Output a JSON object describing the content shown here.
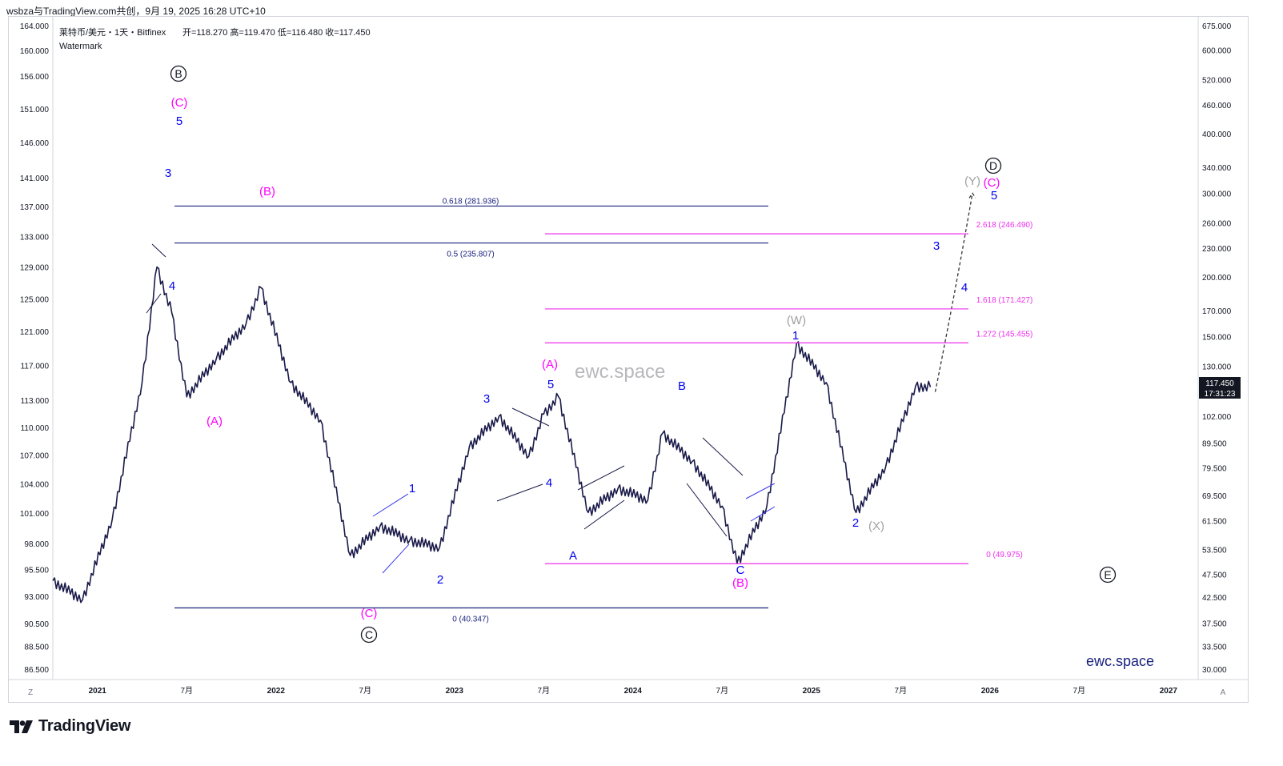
{
  "header": {
    "top_line": "wsbza与TradingView.com共创，9月 19, 2025 16:28 UTC+10",
    "symbol": "莱特币/美元・1天・Bitfinex",
    "ohlc": "开=118.270  高=119.470  低=116.480  收=117.450",
    "watermark_label": "Watermark"
  },
  "watermarks": {
    "center": "ewc.space",
    "corner": "ewc.space"
  },
  "footer": {
    "brand": "TradingView"
  },
  "axis": {
    "left_ticks": [
      "164.000",
      "160.000",
      "156.000",
      "151.000",
      "146.000",
      "141.000",
      "137.000",
      "133.000",
      "129.000",
      "125.000",
      "121.000",
      "117.000",
      "113.000",
      "110.000",
      "107.000",
      "104.000",
      "101.000",
      "98.000",
      "95.500",
      "93.000",
      "90.500",
      "88.500",
      "86.500"
    ],
    "right_ticks": [
      "675.000",
      "600.000",
      "520.000",
      "460.000",
      "400.000",
      "340.000",
      "300.000",
      "260.000",
      "230.000",
      "200.000",
      "170.000",
      "150.000",
      "130.000",
      "102.000",
      "89.500",
      "79.500",
      "69.500",
      "61.500",
      "53.500",
      "47.500",
      "42.500",
      "37.500",
      "33.500",
      "30.000"
    ],
    "x_ticks": [
      "2021",
      "7月",
      "2022",
      "7月",
      "2023",
      "7月",
      "2024",
      "7月",
      "2025",
      "7月",
      "2026",
      "7月",
      "2027"
    ],
    "left_corner": "Z",
    "right_corner": "A",
    "price_tag": "117.450",
    "countdown_tag": "17:31:23"
  },
  "colors": {
    "candles": "#1a1a4a",
    "blue_label": "#0000ee",
    "magenta": "#ff00ff",
    "grey_label": "#a0a0a0",
    "fib_navy": "#1a237e",
    "fib_magenta": "#ee30ee",
    "price_tag_bg": "#131722"
  },
  "chart_data": {
    "type": "line",
    "x": [
      "2020-10",
      "2020-12",
      "2021-02",
      "2021-04",
      "2021-05",
      "2021-06",
      "2021-07",
      "2021-09",
      "2021-11",
      "2021-12",
      "2022-02",
      "2022-04",
      "2022-06",
      "2022-08",
      "2022-10",
      "2022-12",
      "2023-02",
      "2023-04",
      "2023-06",
      "2023-07",
      "2023-08",
      "2023-10",
      "2023-12",
      "2024-02",
      "2024-03",
      "2024-05",
      "2024-07",
      "2024-08",
      "2024-10",
      "2024-12",
      "2025-02",
      "2025-04",
      "2025-06",
      "2025-08",
      "2025-09"
    ],
    "series": [
      {
        "values": [
          46,
          42,
          62,
          120,
          210,
          168,
          112,
          135,
          160,
          190,
          120,
          100,
          52,
          60,
          56,
          54,
          88,
          102,
          84,
          103,
          112,
          64,
          72,
          68,
          94,
          82,
          66,
          50,
          66,
          145,
          120,
          64,
          80,
          118,
          117.45
        ]
      }
    ],
    "scale": "log",
    "y_range_right": [
      30,
      675
    ],
    "y_range_left": [
      86.5,
      164
    ],
    "x_range": [
      "2020-10",
      "2027-03"
    ],
    "grid": false,
    "fib_levels": [
      {
        "label": "0.618 (281.936)",
        "value": 281.936
      },
      {
        "label": "0.5 (235.807)",
        "value": 235.807
      },
      {
        "label": "0 (40.347)",
        "value": 40.347
      },
      {
        "label": "2.618 (246.490)",
        "value": 246.49
      },
      {
        "label": "1.618 (171.427)",
        "value": 171.427
      },
      {
        "label": "1.272 (145.455)",
        "value": 145.455
      },
      {
        "label": "0 (49.975)",
        "value": 49.975
      }
    ],
    "wave_labels": [
      "B",
      "(C)",
      "5",
      "3",
      "4",
      "(B)",
      "(A)",
      "(C)",
      "C",
      "1",
      "2",
      "3",
      "4",
      "5",
      "(A)",
      "A",
      "B",
      "C",
      "(B)",
      "(W)",
      "1",
      "2",
      "(X)",
      "3",
      "4",
      "(Y)",
      "(C)",
      "D",
      "5",
      "E"
    ]
  }
}
